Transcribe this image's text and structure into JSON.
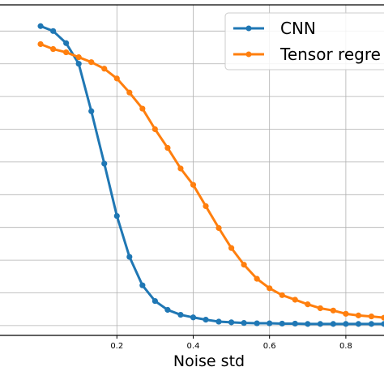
{
  "chart_data": {
    "type": "line",
    "title": "",
    "xlabel": "Noise std",
    "ylabel": "",
    "xlim": [
      -0.17,
      0.9
    ],
    "ylim": [
      -0.03,
      0.98
    ],
    "xticks": [
      0.2,
      0.4,
      0.6,
      0.8
    ],
    "xtick_labels": [
      "0.2",
      "0.4",
      "0.6",
      "0.8"
    ],
    "yticks": [
      0.0,
      0.1,
      0.2,
      0.3,
      0.4,
      0.5,
      0.6,
      0.7,
      0.8,
      0.9
    ],
    "grid": true,
    "legend_position": "top-right",
    "x": [
      0.0,
      0.033,
      0.067,
      0.1,
      0.133,
      0.167,
      0.2,
      0.233,
      0.267,
      0.3,
      0.333,
      0.367,
      0.4,
      0.433,
      0.467,
      0.5,
      0.533,
      0.567,
      0.6,
      0.633,
      0.667,
      0.7,
      0.733,
      0.767,
      0.8,
      0.833,
      0.867,
      0.9
    ],
    "series": [
      {
        "name": "CNN",
        "color": "#1f77b4",
        "values": [
          0.915,
          0.9,
          0.863,
          0.8,
          0.655,
          0.495,
          0.335,
          0.21,
          0.123,
          0.075,
          0.048,
          0.033,
          0.025,
          0.018,
          0.012,
          0.01,
          0.008,
          0.007,
          0.007,
          0.006,
          0.006,
          0.005,
          0.005,
          0.005,
          0.005,
          0.005,
          0.005,
          0.005
        ]
      },
      {
        "name": "Tensor regre",
        "color": "#ff7f0e",
        "values": [
          0.86,
          0.845,
          0.835,
          0.82,
          0.805,
          0.785,
          0.755,
          0.712,
          0.663,
          0.6,
          0.543,
          0.48,
          0.43,
          0.365,
          0.298,
          0.237,
          0.186,
          0.143,
          0.114,
          0.093,
          0.079,
          0.065,
          0.053,
          0.046,
          0.036,
          0.031,
          0.028,
          0.024
        ]
      }
    ]
  }
}
